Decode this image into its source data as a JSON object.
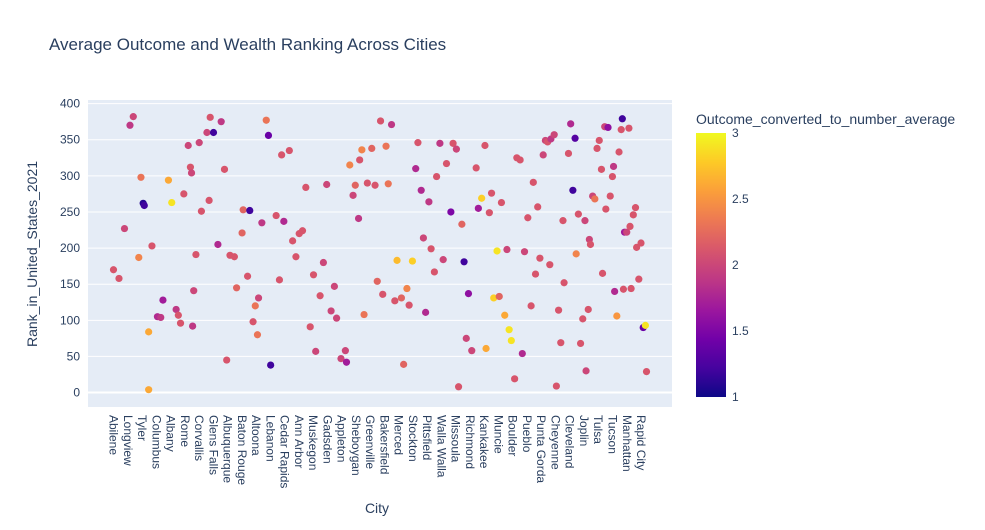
{
  "chart_data": {
    "type": "scatter",
    "title": "Average Outcome and Wealth Ranking Across Cities",
    "xlabel": "City",
    "ylabel": "Rank_in_United_States_2021",
    "ylim": [
      -20,
      405
    ],
    "yticks": [
      0,
      50,
      100,
      150,
      200,
      250,
      300,
      350,
      400
    ],
    "x_tick_labels": [
      "Abilene",
      "Longview",
      "Tyler",
      "Columbus",
      "Albany",
      "Rome",
      "Corvallis",
      "Glens Falls",
      "Albuquerque",
      "Baton Rouge",
      "Altoona",
      "Lebanon",
      "Cedar Rapids",
      "Ann Arbor",
      "Muskegon",
      "Gadsden",
      "Appleton",
      "Sheboygan",
      "Greenville",
      "Bakersfield",
      "Merced",
      "Stockton",
      "Pittsfield",
      "Walla Walla",
      "Missoula",
      "Richmond",
      "Kankakee",
      "Muncie",
      "Boulder",
      "Pueblo",
      "Punta Gorda",
      "Cheyenne",
      "Cleveland",
      "Joplin",
      "Tulsa",
      "Tucson",
      "Manhattan",
      "Rapid City"
    ],
    "colorbar": {
      "title": "Outcome_converted_to_number_average",
      "min": 1,
      "max": 3,
      "ticks": [
        "1",
        "1.5",
        "2",
        "2.5",
        "3"
      ]
    },
    "grid": true,
    "points": [
      [
        0.5,
        170,
        2.1
      ],
      [
        1,
        158,
        2.1
      ],
      [
        1.5,
        227,
        2.0
      ],
      [
        2,
        370,
        1.9
      ],
      [
        2.3,
        382,
        2.0
      ],
      [
        2.8,
        187,
        2.4
      ],
      [
        3,
        298,
        2.3
      ],
      [
        3.2,
        262,
        1.1
      ],
      [
        3.3,
        259,
        1.2
      ],
      [
        3.7,
        84,
        2.6
      ],
      [
        3.7,
        4,
        2.6
      ],
      [
        4,
        203,
        2.1
      ],
      [
        4.5,
        105,
        1.8
      ],
      [
        4.8,
        104,
        1.9
      ],
      [
        5,
        128,
        1.7
      ],
      [
        5.5,
        294,
        2.6
      ],
      [
        5.8,
        263,
        2.9
      ],
      [
        6.2,
        115,
        1.9
      ],
      [
        6.4,
        107,
        2.1
      ],
      [
        6.6,
        96,
        2.1
      ],
      [
        6.9,
        275,
        2.1
      ],
      [
        7.3,
        342,
        2.0
      ],
      [
        7.5,
        312,
        2.1
      ],
      [
        7.6,
        304,
        2.0
      ],
      [
        7.7,
        92,
        1.9
      ],
      [
        7.8,
        141,
        2.0
      ],
      [
        8,
        191,
        2.1
      ],
      [
        8.3,
        346,
        2.0
      ],
      [
        8.5,
        251,
        2.1
      ],
      [
        9,
        360,
        2.0
      ],
      [
        9.2,
        266,
        2.1
      ],
      [
        9.3,
        381,
        2.1
      ],
      [
        9.6,
        360,
        1.2
      ],
      [
        10,
        205,
        1.8
      ],
      [
        10.3,
        375,
        1.9
      ],
      [
        10.6,
        309,
        2.1
      ],
      [
        10.8,
        45,
        2.1
      ],
      [
        11.1,
        190,
        2.1
      ],
      [
        11.5,
        188,
        2.1
      ],
      [
        11.7,
        145,
        2.2
      ],
      [
        12.2,
        221,
        2.2
      ],
      [
        12.3,
        253,
        2.2
      ],
      [
        12.7,
        161,
        2.1
      ],
      [
        12.9,
        252,
        1.2
      ],
      [
        13.2,
        98,
        2.1
      ],
      [
        13.4,
        120,
        2.3
      ],
      [
        13.6,
        80,
        2.3
      ],
      [
        13.7,
        131,
        2.0
      ],
      [
        14,
        235,
        1.9
      ],
      [
        14.4,
        377,
        2.3
      ],
      [
        14.6,
        356,
        1.4
      ],
      [
        14.8,
        38,
        1.2
      ],
      [
        15.3,
        245,
        2.1
      ],
      [
        15.6,
        156,
        2.1
      ],
      [
        15.8,
        329,
        2.1
      ],
      [
        16,
        237,
        1.8
      ],
      [
        16.5,
        335,
        2.1
      ],
      [
        16.8,
        210,
        2.1
      ],
      [
        17.1,
        188,
        2.1
      ],
      [
        17.4,
        220,
        2.1
      ],
      [
        17.7,
        224,
        2.1
      ],
      [
        18,
        284,
        2.1
      ],
      [
        18.4,
        91,
        2.1
      ],
      [
        18.7,
        163,
        2.1
      ],
      [
        18.9,
        57,
        2.0
      ],
      [
        19.3,
        134,
        2.1
      ],
      [
        19.6,
        180,
        2.0
      ],
      [
        19.9,
        288,
        2.0
      ],
      [
        20.3,
        113,
        2.0
      ],
      [
        20.6,
        147,
        2.0
      ],
      [
        20.8,
        103,
        2.0
      ],
      [
        21.2,
        47,
        2.0
      ],
      [
        21.6,
        58,
        2.0
      ],
      [
        21.7,
        42,
        1.7
      ],
      [
        22,
        315,
        2.4
      ],
      [
        22.3,
        273,
        2.0
      ],
      [
        22.5,
        287,
        2.2
      ],
      [
        22.8,
        241,
        1.9
      ],
      [
        22.9,
        322,
        2.1
      ],
      [
        23.1,
        336,
        2.4
      ],
      [
        23.3,
        108,
        2.3
      ],
      [
        23.6,
        290,
        2.1
      ],
      [
        24,
        338,
        2.2
      ],
      [
        24.3,
        287,
        2.1
      ],
      [
        24.5,
        154,
        2.2
      ],
      [
        24.8,
        376,
        2.1
      ],
      [
        25,
        136,
        2.1
      ],
      [
        25.3,
        341,
        2.3
      ],
      [
        25.5,
        289,
        2.3
      ],
      [
        25.8,
        371,
        1.9
      ],
      [
        26.1,
        127,
        2.1
      ],
      [
        26.3,
        183,
        2.7
      ],
      [
        26.7,
        131,
        2.2
      ],
      [
        26.9,
        39,
        2.2
      ],
      [
        27.2,
        144,
        2.4
      ],
      [
        27.4,
        121,
        2.1
      ],
      [
        27.7,
        182,
        2.8
      ],
      [
        28,
        310,
        1.8
      ],
      [
        28.2,
        346,
        2.1
      ],
      [
        28.5,
        280,
        1.8
      ],
      [
        28.7,
        214,
        2.0
      ],
      [
        28.9,
        111,
        1.8
      ],
      [
        29.2,
        264,
        1.9
      ],
      [
        29.4,
        199,
        2.1
      ],
      [
        29.7,
        167,
        2.1
      ],
      [
        29.9,
        299,
        2.1
      ],
      [
        30.2,
        345,
        1.9
      ],
      [
        30.5,
        184,
        2.0
      ],
      [
        30.8,
        317,
        2.1
      ],
      [
        31.2,
        250,
        1.5
      ],
      [
        31.4,
        345,
        2.1
      ],
      [
        31.7,
        337,
        2.0
      ],
      [
        31.9,
        8,
        2.1
      ],
      [
        32.2,
        233,
        2.2
      ],
      [
        32.4,
        181,
        1.2
      ],
      [
        32.6,
        75,
        2.0
      ],
      [
        32.8,
        137,
        1.6
      ],
      [
        33.1,
        58,
        2.0
      ],
      [
        33.5,
        311,
        2.1
      ],
      [
        33.7,
        255,
        1.7
      ],
      [
        34,
        269,
        2.8
      ],
      [
        34.3,
        342,
        2.1
      ],
      [
        34.4,
        61,
        2.6
      ],
      [
        34.7,
        249,
        2.1
      ],
      [
        34.9,
        276,
        2.1
      ],
      [
        35.1,
        131,
        2.8
      ],
      [
        35.4,
        196,
        2.9
      ],
      [
        35.6,
        133,
        2.2
      ],
      [
        35.8,
        263,
        2.1
      ],
      [
        36.1,
        107,
        2.6
      ],
      [
        36.3,
        198,
        2.0
      ],
      [
        36.5,
        87,
        2.9
      ],
      [
        36.7,
        72,
        2.9
      ],
      [
        37,
        19,
        2.1
      ],
      [
        37.2,
        325,
        2.1
      ],
      [
        37.5,
        322,
        2.1
      ],
      [
        37.7,
        54,
        1.8
      ],
      [
        37.9,
        195,
        2.0
      ],
      [
        38.2,
        242,
        2.1
      ],
      [
        38.5,
        120,
        2.1
      ],
      [
        38.7,
        291,
        2.1
      ],
      [
        38.9,
        164,
        2.1
      ],
      [
        39.1,
        257,
        2.1
      ],
      [
        39.3,
        186,
        2.1
      ],
      [
        39.6,
        329,
        2.0
      ],
      [
        39.8,
        349,
        2.0
      ],
      [
        40,
        347,
        2.1
      ],
      [
        40.2,
        177,
        2.1
      ],
      [
        40.3,
        351,
        1.9
      ],
      [
        40.6,
        357,
        2.0
      ],
      [
        40.8,
        9,
        2.1
      ],
      [
        41,
        114,
        2.1
      ],
      [
        41.2,
        69,
        2.1
      ],
      [
        41.4,
        238,
        2.1
      ],
      [
        41.5,
        152,
        2.1
      ],
      [
        41.9,
        331,
        2.1
      ],
      [
        42.1,
        372,
        1.8
      ],
      [
        42.3,
        280,
        1.2
      ],
      [
        42.5,
        352,
        1.3
      ],
      [
        42.6,
        192,
        2.4
      ],
      [
        42.8,
        247,
        2.1
      ],
      [
        43,
        68,
        2.1
      ],
      [
        43.2,
        102,
        2.1
      ],
      [
        43.4,
        238,
        2.0
      ],
      [
        43.5,
        30,
        2.0
      ],
      [
        43.7,
        115,
        2.1
      ],
      [
        43.8,
        212,
        2.0
      ],
      [
        43.9,
        205,
        2.1
      ],
      [
        44.1,
        272,
        2.0
      ],
      [
        44.3,
        268,
        2.3
      ],
      [
        44.5,
        338,
        2.1
      ],
      [
        44.7,
        349,
        2.1
      ],
      [
        44.9,
        309,
        2.1
      ],
      [
        45,
        165,
        2.1
      ],
      [
        45.2,
        368,
        2.0
      ],
      [
        45.3,
        254,
        2.1
      ],
      [
        45.5,
        367,
        1.6
      ],
      [
        45.7,
        272,
        2.1
      ],
      [
        45.9,
        299,
        2.1
      ],
      [
        46,
        313,
        1.9
      ],
      [
        46.1,
        140,
        1.8
      ],
      [
        46.3,
        106,
        2.5
      ],
      [
        46.5,
        333,
        2.1
      ],
      [
        46.7,
        364,
        2.1
      ],
      [
        46.8,
        379,
        1.2
      ],
      [
        46.9,
        143,
        2.1
      ],
      [
        47,
        222,
        1.7
      ],
      [
        47.2,
        222,
        2.0
      ],
      [
        47.4,
        366,
        2.1
      ],
      [
        47.5,
        230,
        2.1
      ],
      [
        47.6,
        144,
        2.1
      ],
      [
        47.8,
        246,
        2.1
      ],
      [
        48,
        256,
        2.1
      ],
      [
        48.1,
        201,
        2.1
      ],
      [
        48.3,
        157,
        2.1
      ],
      [
        48.5,
        207,
        2.1
      ],
      [
        48.7,
        90,
        1.4
      ],
      [
        48.9,
        93,
        2.9
      ],
      [
        49,
        29,
        2.1
      ]
    ]
  }
}
